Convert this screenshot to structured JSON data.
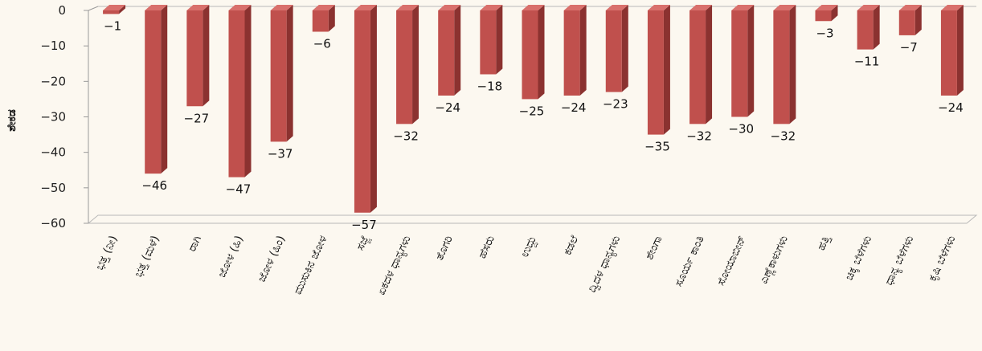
{
  "chart_data": {
    "type": "bar",
    "title": "",
    "xlabel": "",
    "ylabel": "ಶೇಕಡ",
    "ylim": [
      -60,
      0
    ],
    "yticks": [
      0,
      -10,
      -20,
      -30,
      -40,
      -50,
      -60
    ],
    "grid": false,
    "style": "3d",
    "colors": {
      "bar_front": "#c0504d",
      "bar_side": "#8b3230",
      "bar_top": "#d9706c",
      "background": "#fcf8f0"
    },
    "categories": [
      "ಭತ್ತ (ನೀ)",
      "ಭತ್ತ (ಮಳೆ)",
      "ರಾಗಿ",
      "ಜೋಳ (ಹಿ)",
      "ಜೋಳ (ಹಿಂ)",
      "ಮುಸುಕಿನ ಜೋಳ",
      "ಸಜ್ಜೆ",
      "ಏಕದಳ ಧಾನ್ಯಗಳು",
      "ತೊಗರಿ",
      "ಹೆಸರು",
      "ಉದ್ದು",
      "ಕಡಲೆ",
      "ದ್ವಿದಳ ಧಾನ್ಯಗಳು",
      "ಶೇಂಗಾ",
      "ಸೂರ್ಯ ಕಾಂತಿ",
      "ಸೋಯಾಬೀನ್",
      "ಎಣ್ಣೆಕಾಳುಗಳು",
      "ಹತ್ತಿ",
      "ಚಿಕ್ಕ ಬೆಳೆಗಳು",
      "ಧಾನ್ಯ ಬೆಳೆಗಳು",
      "ಕೃಷಿ ಬೆಳೆಗಳು"
    ],
    "values": [
      -1,
      -46,
      -27,
      -47,
      -37,
      -6,
      -57,
      -32,
      -24,
      -18,
      -25,
      -24,
      -23,
      -35,
      -32,
      -30,
      -32,
      -3,
      -11,
      -7,
      -24
    ],
    "data_labels": [
      "-1",
      "-46",
      "-27",
      "-47",
      "-37",
      "-6",
      "-57",
      "-32",
      "-24",
      "-18",
      "-25",
      "-24",
      "-23",
      "-35",
      "-32",
      "-30",
      "-32",
      "-3",
      "-11",
      "-7",
      "-24"
    ]
  }
}
